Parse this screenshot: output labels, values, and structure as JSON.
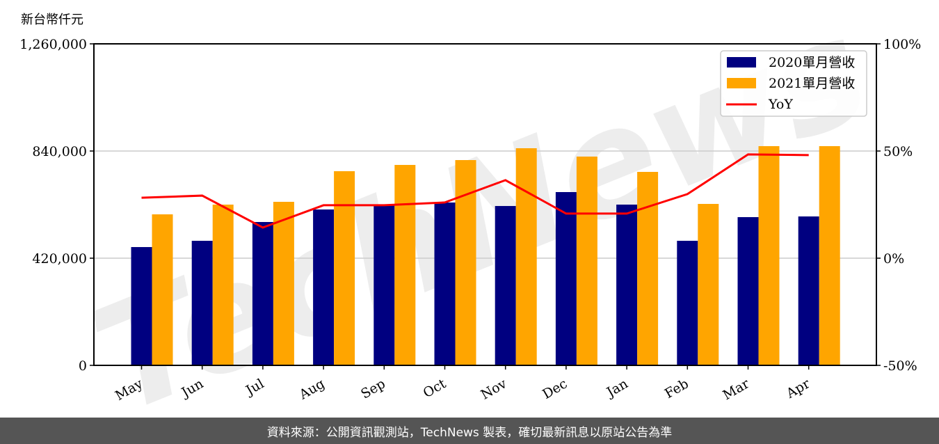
{
  "chart_data": {
    "type": "bar",
    "title": "",
    "unit_label": "新台幣仟元",
    "xlabel": "",
    "ylabel": "新台幣仟元",
    "y2label": "YoY",
    "categories": [
      "May",
      "Jun",
      "Jul",
      "Aug",
      "Sep",
      "Oct",
      "Nov",
      "Dec",
      "Jan",
      "Feb",
      "Mar",
      "Apr"
    ],
    "series": [
      {
        "name": "2020單月營收",
        "type": "bar",
        "axis": "left",
        "color": "#000080",
        "values": [
          463600,
          488200,
          561800,
          610900,
          627300,
          638200,
          624500,
          679100,
          630000,
          488200,
          580900,
          583600
        ]
      },
      {
        "name": "2021單月營收",
        "type": "bar",
        "axis": "left",
        "color": "#FFA500",
        "values": [
          591800,
          630000,
          640900,
          760900,
          785500,
          804500,
          850900,
          818200,
          758200,
          632700,
          859100,
          859100
        ]
      },
      {
        "name": "YoY",
        "type": "line",
        "axis": "right",
        "color": "#FF0000",
        "values": [
          28.2,
          29.2,
          14.3,
          24.7,
          24.7,
          26.0,
          36.4,
          20.8,
          20.8,
          29.9,
          48.4,
          48.1
        ]
      }
    ],
    "ylim": [
      0,
      1260000
    ],
    "yticks": [
      "0",
      "420,000",
      "840,000",
      "1,260,000"
    ],
    "y2lim": [
      -50,
      100
    ],
    "y2ticks": [
      "-50%",
      "0%",
      "50%",
      "100%"
    ],
    "grid": "horizontal",
    "legend_position": "upper right"
  },
  "watermark": "TechNews",
  "footer": {
    "text": "資料來源：公開資訊觀測站，TechNews 製表，確切最新訊息以原站公告為準"
  }
}
